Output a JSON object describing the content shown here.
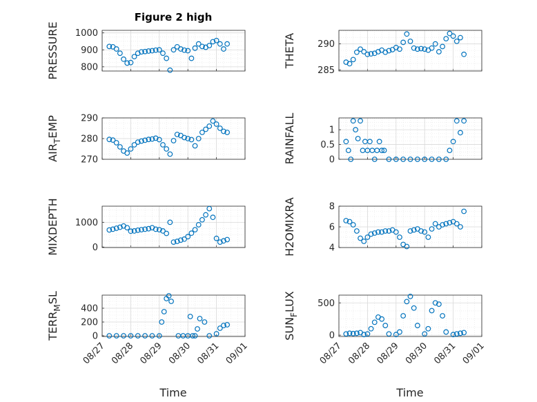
{
  "figure": {
    "title": "Figure 2 high",
    "xlabel": "Time",
    "marker_color": "#0072BD",
    "x_tick_labels": [
      "08/27",
      "08/28",
      "08/29",
      "08/30",
      "08/31",
      "09/01"
    ]
  },
  "chart_data": [
    {
      "type": "scatter",
      "title": "Figure 2 high",
      "ylabel": "PRESSURE",
      "xlabel": "",
      "yticks": [
        "800",
        "900",
        "1000"
      ],
      "ylim": [
        775,
        1015
      ],
      "xlim": [
        "08/27",
        "09/01"
      ],
      "grid": true,
      "x": [
        "08/27 06:00",
        "08/27 09:00",
        "08/27 12:00",
        "08/27 15:00",
        "08/27 18:00",
        "08/27 21:00",
        "08/28 00:00",
        "08/28 03:00",
        "08/28 06:00",
        "08/28 09:00",
        "08/28 12:00",
        "08/28 15:00",
        "08/28 18:00",
        "08/28 21:00",
        "08/29 00:00",
        "08/29 03:00",
        "08/29 06:00",
        "08/29 09:00",
        "08/29 12:00",
        "08/29 15:00",
        "08/29 18:00",
        "08/29 21:00",
        "08/30 00:00",
        "08/30 03:00",
        "08/30 06:00",
        "08/30 09:00",
        "08/30 12:00",
        "08/30 15:00",
        "08/30 18:00",
        "08/30 21:00",
        "08/31 00:00",
        "08/31 03:00",
        "08/31 06:00",
        "08/31 09:00"
      ],
      "values": [
        920,
        918,
        905,
        880,
        845,
        822,
        825,
        860,
        880,
        888,
        890,
        893,
        895,
        898,
        900,
        880,
        850,
        780,
        900,
        918,
        905,
        898,
        895,
        850,
        910,
        935,
        920,
        915,
        925,
        948,
        955,
        935,
        905,
        935
      ]
    },
    {
      "type": "scatter",
      "ylabel": "THETA",
      "yticks": [
        "285",
        "290"
      ],
      "ylim": [
        284.8,
        292.6
      ],
      "xlim": [
        "08/27",
        "09/01"
      ],
      "grid": true,
      "x": [
        "08/27 06:00",
        "08/27 09:00",
        "08/27 12:00",
        "08/27 15:00",
        "08/27 18:00",
        "08/27 21:00",
        "08/28 00:00",
        "08/28 03:00",
        "08/28 06:00",
        "08/28 09:00",
        "08/28 12:00",
        "08/28 15:00",
        "08/28 18:00",
        "08/28 21:00",
        "08/29 00:00",
        "08/29 03:00",
        "08/29 06:00",
        "08/29 09:00",
        "08/29 12:00",
        "08/29 15:00",
        "08/29 18:00",
        "08/29 21:00",
        "08/30 00:00",
        "08/30 03:00",
        "08/30 06:00",
        "08/30 09:00",
        "08/30 12:00",
        "08/30 15:00",
        "08/30 18:00",
        "08/30 21:00",
        "08/31 00:00",
        "08/31 03:00",
        "08/31 06:00",
        "08/31 09:00"
      ],
      "values": [
        286.5,
        286.2,
        287.0,
        288.4,
        289.0,
        288.5,
        288.0,
        288.1,
        288.2,
        288.5,
        288.8,
        288.4,
        288.7,
        288.9,
        289.3,
        289.0,
        290.3,
        291.9,
        290.5,
        289.2,
        289.0,
        289.1,
        289.0,
        288.8,
        289.2,
        290.0,
        288.5,
        289.5,
        291.0,
        292.0,
        291.5,
        290.5,
        291.2,
        288.0
      ]
    },
    {
      "type": "scatter",
      "ylabel": "AIR_TEMP",
      "yticks": [
        "270",
        "280",
        "290"
      ],
      "ylim": [
        270,
        290
      ],
      "xlim": [
        "08/27",
        "09/01"
      ],
      "grid": true,
      "x": [
        "08/27 06:00",
        "08/27 09:00",
        "08/27 12:00",
        "08/27 15:00",
        "08/27 18:00",
        "08/27 21:00",
        "08/28 00:00",
        "08/28 03:00",
        "08/28 06:00",
        "08/28 09:00",
        "08/28 12:00",
        "08/28 15:00",
        "08/28 18:00",
        "08/28 21:00",
        "08/29 00:00",
        "08/29 03:00",
        "08/29 06:00",
        "08/29 09:00",
        "08/29 12:00",
        "08/29 15:00",
        "08/29 18:00",
        "08/29 21:00",
        "08/30 00:00",
        "08/30 03:00",
        "08/30 06:00",
        "08/30 09:00",
        "08/30 12:00",
        "08/30 15:00",
        "08/30 18:00",
        "08/30 21:00",
        "08/31 00:00",
        "08/31 03:00",
        "08/31 06:00",
        "08/31 09:00"
      ],
      "values": [
        279.6,
        279.3,
        278.0,
        276.0,
        274.0,
        273.0,
        275.0,
        277.0,
        278.3,
        278.8,
        279.2,
        279.6,
        279.8,
        280.2,
        279.5,
        277.0,
        275.0,
        272.5,
        279.0,
        282.0,
        281.5,
        280.5,
        280.0,
        279.5,
        276.5,
        280.0,
        283.0,
        284.5,
        286.0,
        288.5,
        287.0,
        285.0,
        283.5,
        283.0
      ]
    },
    {
      "type": "scatter",
      "ylabel": "RAINFALL",
      "yticks": [
        "0",
        "0.5",
        "1"
      ],
      "ylim": [
        0,
        1.4
      ],
      "xlim": [
        "08/27",
        "09/01"
      ],
      "grid": true,
      "x": [
        "08/27 06:00",
        "08/27 08:00",
        "08/27 10:00",
        "08/27 12:00",
        "08/27 14:00",
        "08/27 16:00",
        "08/27 18:00",
        "08/27 20:00",
        "08/27 22:00",
        "08/28 00:00",
        "08/28 02:00",
        "08/28 04:00",
        "08/28 06:00",
        "08/28 08:00",
        "08/28 10:00",
        "08/28 12:00",
        "08/28 14:00",
        "08/28 18:00",
        "08/29 00:00",
        "08/29 06:00",
        "08/29 12:00",
        "08/29 18:00",
        "08/30 00:00",
        "08/30 06:00",
        "08/30 12:00",
        "08/30 18:00",
        "08/30 21:00",
        "08/31 00:00",
        "08/31 03:00",
        "08/31 06:00",
        "08/31 09:00"
      ],
      "values": [
        0.6,
        0.3,
        0,
        1.3,
        1.0,
        0.7,
        1.3,
        0.3,
        0.6,
        0.3,
        0.6,
        0.3,
        0,
        0.3,
        0.6,
        0.3,
        0.3,
        0,
        0,
        0,
        0,
        0,
        0,
        0,
        0,
        0,
        0.3,
        0.6,
        1.3,
        0.9,
        1.3
      ]
    },
    {
      "type": "scatter",
      "ylabel": "MIXDEPTH",
      "yticks": [
        "0",
        "1000"
      ],
      "ylim": [
        -20,
        1650
      ],
      "xlim": [
        "08/27",
        "09/01"
      ],
      "grid": true,
      "x": [
        "08/27 06:00",
        "08/27 09:00",
        "08/27 12:00",
        "08/27 15:00",
        "08/27 18:00",
        "08/27 21:00",
        "08/28 00:00",
        "08/28 03:00",
        "08/28 06:00",
        "08/28 09:00",
        "08/28 12:00",
        "08/28 15:00",
        "08/28 18:00",
        "08/28 21:00",
        "08/29 00:00",
        "08/29 03:00",
        "08/29 06:00",
        "08/29 09:00",
        "08/29 12:00",
        "08/29 15:00",
        "08/29 18:00",
        "08/29 21:00",
        "08/30 00:00",
        "08/30 03:00",
        "08/30 06:00",
        "08/30 09:00",
        "08/30 12:00",
        "08/30 15:00",
        "08/30 18:00",
        "08/30 21:00",
        "08/31 00:00",
        "08/31 03:00",
        "08/31 06:00",
        "08/31 09:00"
      ],
      "values": [
        690,
        720,
        760,
        800,
        850,
        780,
        640,
        650,
        680,
        700,
        720,
        740,
        780,
        720,
        700,
        650,
        550,
        1000,
        200,
        230,
        280,
        320,
        420,
        560,
        700,
        900,
        1100,
        1300,
        1550,
        1200,
        350,
        200,
        250,
        300
      ]
    },
    {
      "type": "scatter",
      "ylabel": "H2OMIXRA",
      "yticks": [
        "4",
        "6",
        "8"
      ],
      "ylim": [
        4,
        8
      ],
      "xlim": [
        "08/27",
        "09/01"
      ],
      "grid": true,
      "x": [
        "08/27 06:00",
        "08/27 09:00",
        "08/27 12:00",
        "08/27 15:00",
        "08/27 18:00",
        "08/27 21:00",
        "08/28 00:00",
        "08/28 03:00",
        "08/28 06:00",
        "08/28 09:00",
        "08/28 12:00",
        "08/28 15:00",
        "08/28 18:00",
        "08/28 21:00",
        "08/29 00:00",
        "08/29 03:00",
        "08/29 06:00",
        "08/29 09:00",
        "08/29 12:00",
        "08/29 15:00",
        "08/29 18:00",
        "08/29 21:00",
        "08/30 00:00",
        "08/30 03:00",
        "08/30 06:00",
        "08/30 09:00",
        "08/30 12:00",
        "08/30 15:00",
        "08/30 18:00",
        "08/30 21:00",
        "08/31 00:00",
        "08/31 03:00",
        "08/31 06:00",
        "08/31 09:00"
      ],
      "values": [
        6.6,
        6.5,
        6.2,
        5.6,
        4.9,
        4.6,
        5.0,
        5.3,
        5.4,
        5.5,
        5.5,
        5.6,
        5.6,
        5.7,
        5.5,
        5.0,
        4.3,
        4.1,
        5.6,
        5.7,
        5.8,
        5.6,
        5.5,
        5.0,
        5.8,
        6.3,
        6.0,
        6.2,
        6.3,
        6.4,
        6.5,
        6.3,
        6.0,
        7.5
      ]
    },
    {
      "type": "scatter",
      "ylabel": "TERR_MSL",
      "yticks": [
        "0",
        "200",
        "400"
      ],
      "ylim": [
        -10,
        590
      ],
      "xlim": [
        "08/27",
        "09/01"
      ],
      "grid": true,
      "x": [
        "08/27 06:00",
        "08/27 12:00",
        "08/27 18:00",
        "08/28 00:00",
        "08/28 06:00",
        "08/28 12:00",
        "08/28 18:00",
        "08/29 00:00",
        "08/29 02:00",
        "08/29 04:00",
        "08/29 06:00",
        "08/29 08:00",
        "08/29 10:00",
        "08/29 16:00",
        "08/29 20:00",
        "08/30 00:00",
        "08/30 02:00",
        "08/30 04:00",
        "08/30 06:00",
        "08/30 08:00",
        "08/30 10:00",
        "08/30 14:00",
        "08/30 18:00",
        "08/31 00:00",
        "08/31 03:00",
        "08/31 06:00",
        "08/31 09:00"
      ],
      "values": [
        0,
        0,
        0,
        0,
        0,
        0,
        0,
        0,
        200,
        350,
        540,
        580,
        500,
        0,
        0,
        0,
        280,
        0,
        0,
        100,
        250,
        200,
        0,
        30,
        110,
        150,
        160
      ]
    },
    {
      "type": "scatter",
      "ylabel": "SUN_FLUX",
      "yticks": [
        "0",
        "500"
      ],
      "ylim": [
        -20,
        620
      ],
      "xlim": [
        "08/27",
        "09/01"
      ],
      "grid": true,
      "x": [
        "08/27 06:00",
        "08/27 09:00",
        "08/27 12:00",
        "08/27 15:00",
        "08/27 18:00",
        "08/27 21:00",
        "08/28 00:00",
        "08/28 03:00",
        "08/28 06:00",
        "08/28 09:00",
        "08/28 12:00",
        "08/28 15:00",
        "08/28 18:00",
        "08/29 00:00",
        "08/29 03:00",
        "08/29 06:00",
        "08/29 09:00",
        "08/29 12:00",
        "08/29 15:00",
        "08/29 18:00",
        "08/30 00:00",
        "08/30 03:00",
        "08/30 06:00",
        "08/30 09:00",
        "08/30 12:00",
        "08/30 15:00",
        "08/30 18:00",
        "08/31 00:00",
        "08/31 03:00",
        "08/31 06:00",
        "08/31 09:00"
      ],
      "values": [
        20,
        30,
        25,
        30,
        40,
        10,
        20,
        100,
        200,
        280,
        250,
        150,
        20,
        10,
        50,
        300,
        520,
        600,
        420,
        150,
        20,
        100,
        380,
        500,
        480,
        300,
        50,
        10,
        20,
        30,
        40
      ]
    }
  ]
}
